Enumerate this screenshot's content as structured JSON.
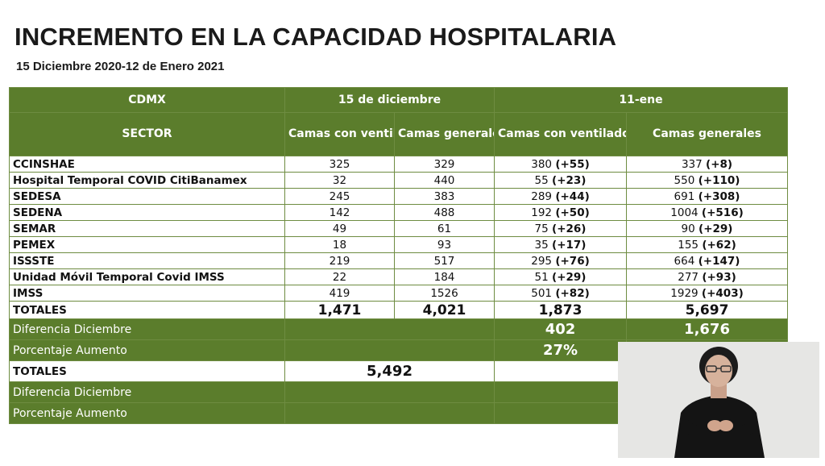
{
  "title": "INCREMENTO EN LA CAPACIDAD HOSPITALARIA",
  "subtitle": "15 Diciembre 2020-12 de Enero 2021",
  "table": {
    "header_region": "CDMX",
    "header_date1": "15 de diciembre",
    "header_date2": "11-ene",
    "header_sector": "SECTOR",
    "col_vent": "Camas con ventilador",
    "col_gen": "Camas generales",
    "rows": [
      {
        "name": "CCINSHAE",
        "v1": "325",
        "g1": "329",
        "v2": "380",
        "v2d": "(+55)",
        "g2": "337",
        "g2d": "(+8)"
      },
      {
        "name": "Hospital Temporal COVID CitiBanamex",
        "v1": "32",
        "g1": "440",
        "v2": "55",
        "v2d": "(+23)",
        "g2": "550",
        "g2d": "(+110)"
      },
      {
        "name": "SEDESA",
        "v1": "245",
        "g1": "383",
        "v2": "289",
        "v2d": "(+44)",
        "g2": "691",
        "g2d": "(+308)"
      },
      {
        "name": "SEDENA",
        "v1": "142",
        "g1": "488",
        "v2": "192",
        "v2d": "(+50)",
        "g2": "1004",
        "g2d": "(+516)"
      },
      {
        "name": "SEMAR",
        "v1": "49",
        "g1": "61",
        "v2": "75",
        "v2d": "(+26)",
        "g2": "90",
        "g2d": "(+29)"
      },
      {
        "name": "PEMEX",
        "v1": "18",
        "g1": "93",
        "v2": "35",
        "v2d": "(+17)",
        "g2": "155",
        "g2d": "(+62)"
      },
      {
        "name": "ISSSTE",
        "v1": "219",
        "g1": "517",
        "v2": "295",
        "v2d": "(+76)",
        "g2": "664",
        "g2d": "(+147)"
      },
      {
        "name": "Unidad Móvil Temporal Covid IMSS",
        "v1": "22",
        "g1": "184",
        "v2": "51",
        "v2d": "(+29)",
        "g2": "277",
        "g2d": "(+93)"
      },
      {
        "name": "IMSS",
        "v1": "419",
        "g1": "1526",
        "v2": "501",
        "v2d": "(+82)",
        "g2": "1929",
        "g2d": "(+403)"
      }
    ],
    "totals": {
      "label": "TOTALES",
      "v1": "1,471",
      "g1": "4,021",
      "v2": "1,873",
      "g2": "5,697"
    },
    "diff": {
      "label": "Diferencia Diciembre",
      "v2": "402",
      "g2": "1,676"
    },
    "pct": {
      "label": "Porcentaje Aumento",
      "v2": "27%"
    },
    "totals2": {
      "label": "TOTALES",
      "v1": "5,492"
    },
    "diff2": {
      "label": "Diferencia Diciembre"
    },
    "pct2": {
      "label": "Porcentaje Aumento"
    }
  }
}
